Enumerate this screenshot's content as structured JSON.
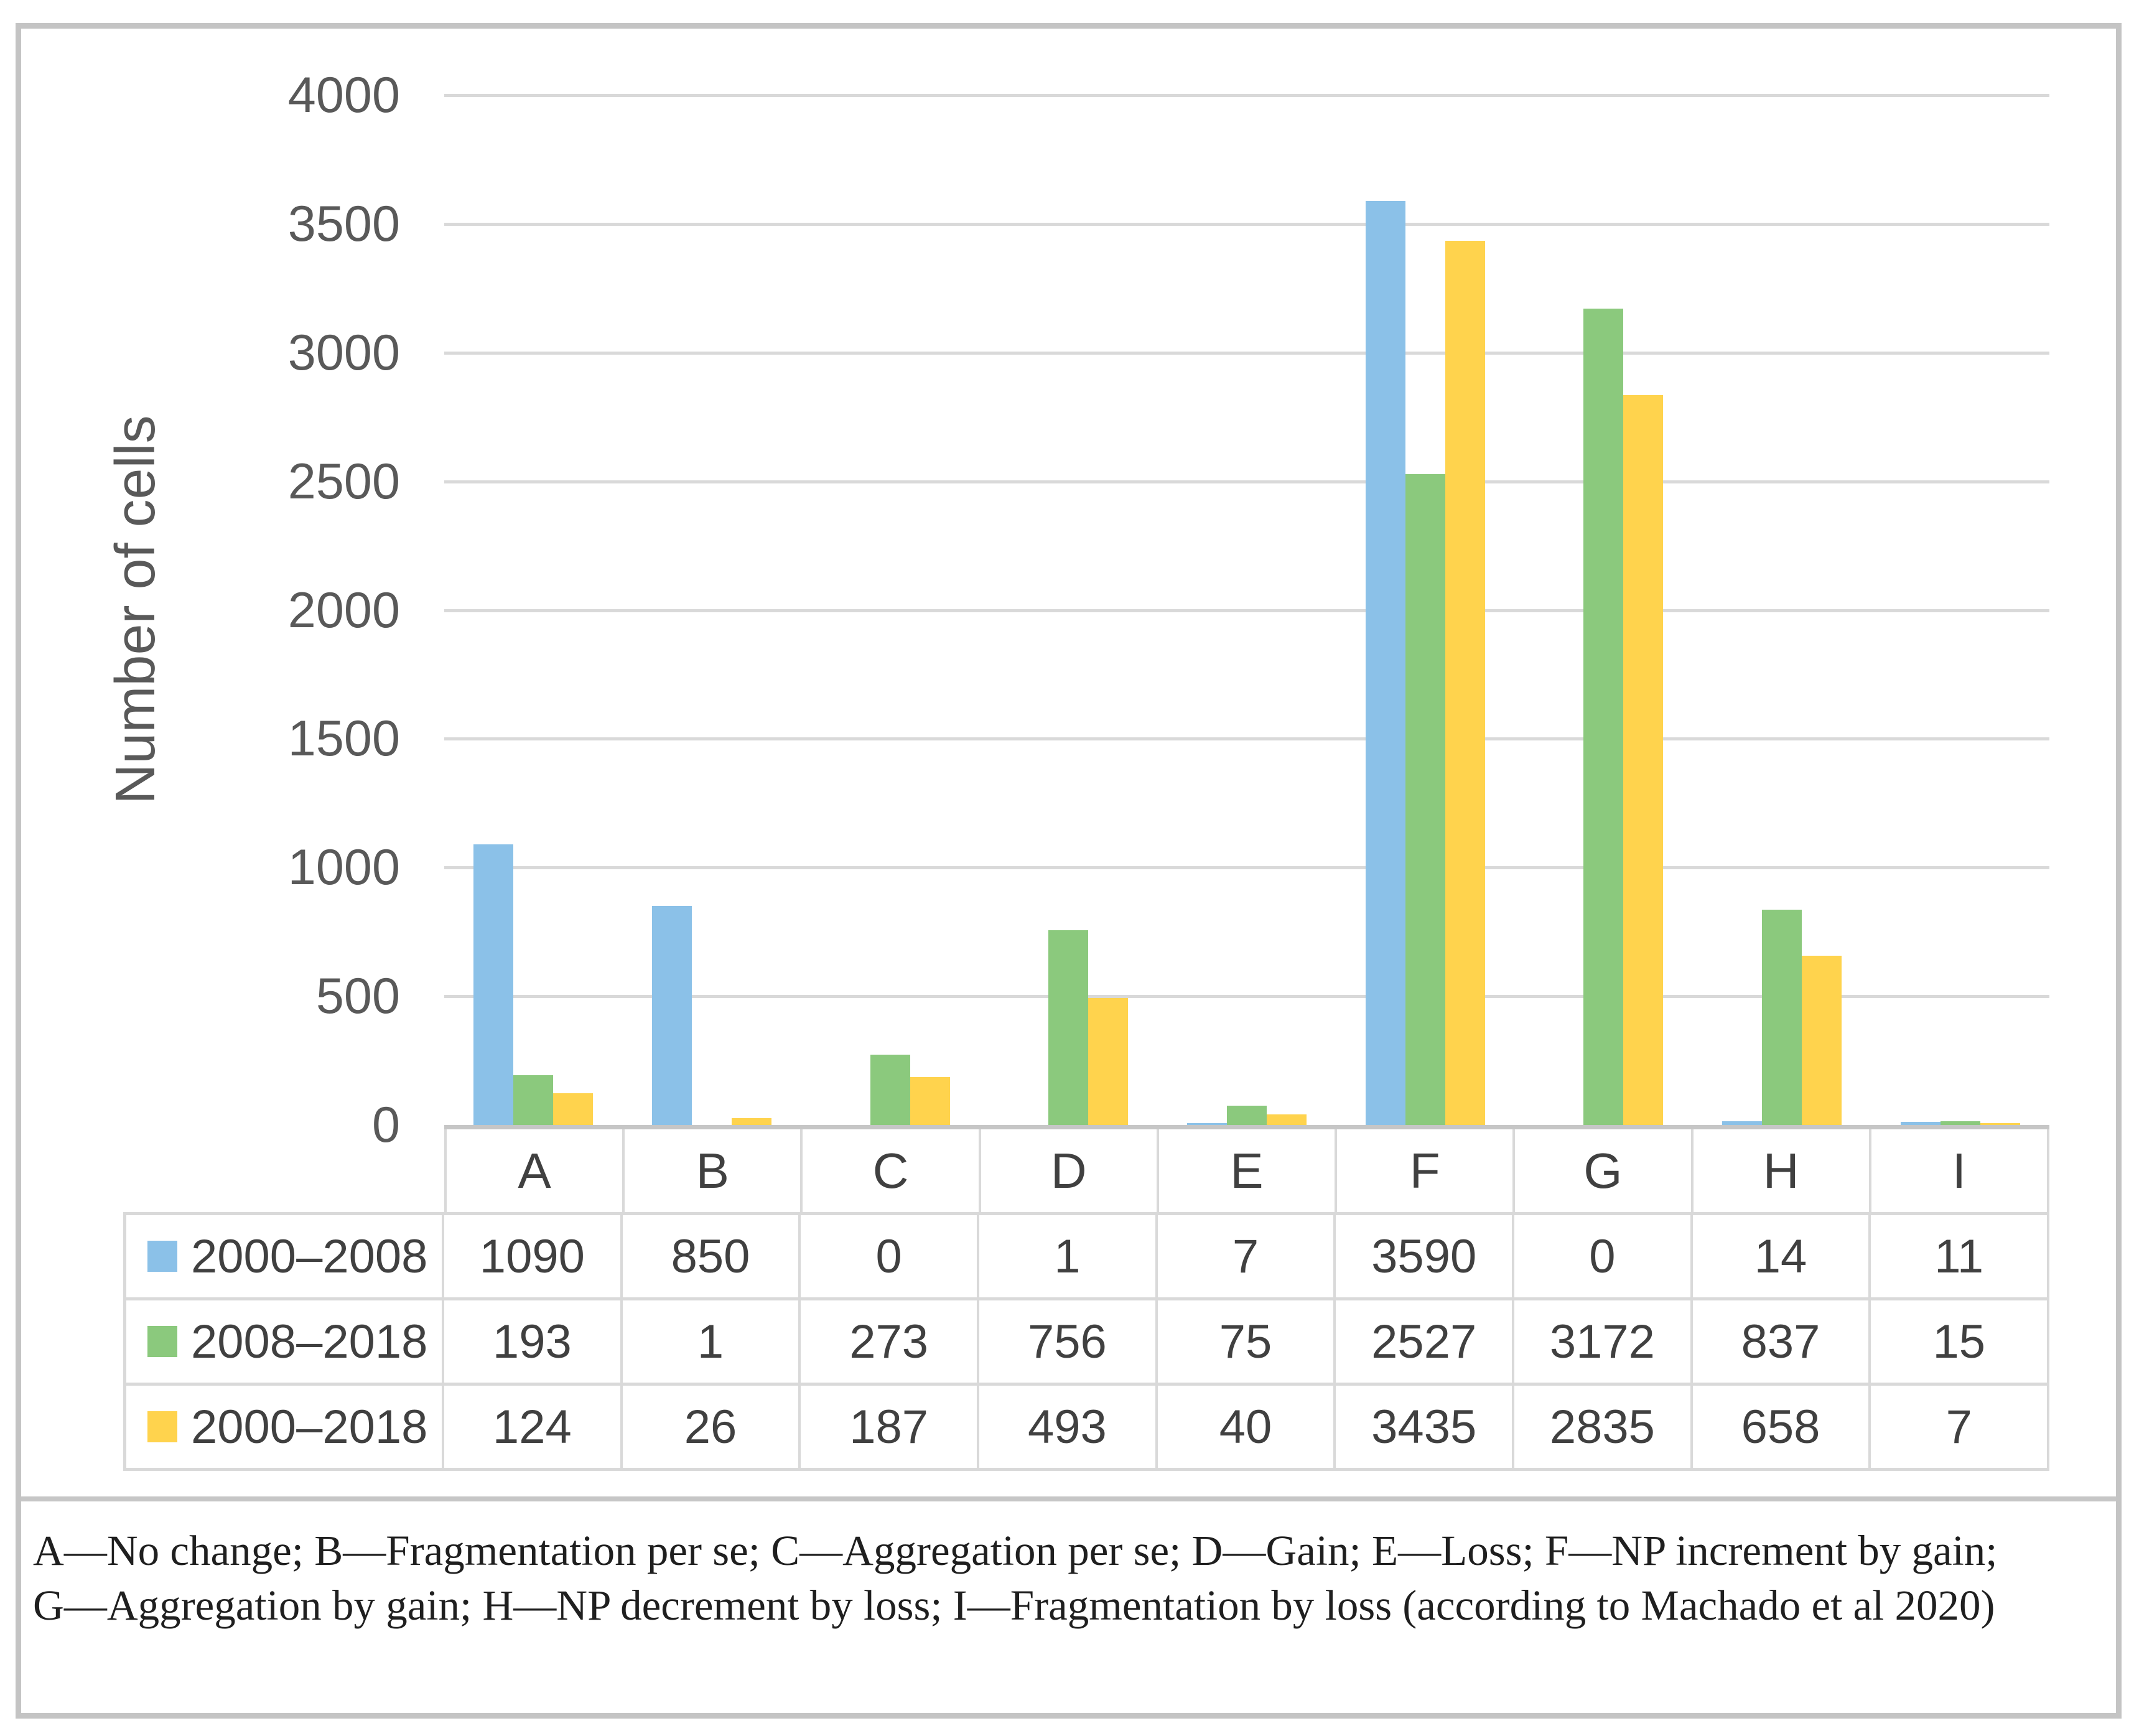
{
  "chart_data": {
    "type": "bar",
    "title": "",
    "xlabel": "",
    "ylabel": "Number of cells",
    "ylim": [
      0,
      4000
    ],
    "ytick_step": 500,
    "yticks": [
      0,
      500,
      1000,
      1500,
      2000,
      2500,
      3000,
      3500,
      4000
    ],
    "grid": true,
    "legend_position": "table-left",
    "categories": [
      "A",
      "B",
      "C",
      "D",
      "E",
      "F",
      "G",
      "H",
      "I"
    ],
    "series": [
      {
        "name": "2000–2008",
        "color": "#8bc1e8",
        "values": [
          1090,
          850,
          0,
          1,
          7,
          3590,
          0,
          14,
          11
        ]
      },
      {
        "name": "2008–2018",
        "color": "#8bc97d",
        "values": [
          193,
          1,
          273,
          756,
          75,
          2527,
          3172,
          837,
          15
        ]
      },
      {
        "name": "2000–2018",
        "color": "#ffd34d",
        "values": [
          124,
          26,
          187,
          493,
          40,
          3435,
          2835,
          658,
          7
        ]
      }
    ]
  },
  "caption": {
    "lines": [
      "A—No change; B—Fragmentation per se; C—Aggregation per se; D—Gain; E—Loss; F—NP increment by gain;",
      "G—Aggregation by gain; H—NP decrement by loss; I—Fragmentation by loss (according to Machado et al 2020)"
    ]
  },
  "colors": {
    "frame_border": "#c4c4c4",
    "gridline": "#d9d9d9",
    "axis_line": "#c6c6c6",
    "table_border": "#d9d9d9",
    "tick_text": "#595959",
    "table_text": "#404040",
    "caption_text": "#1f1f1f"
  }
}
